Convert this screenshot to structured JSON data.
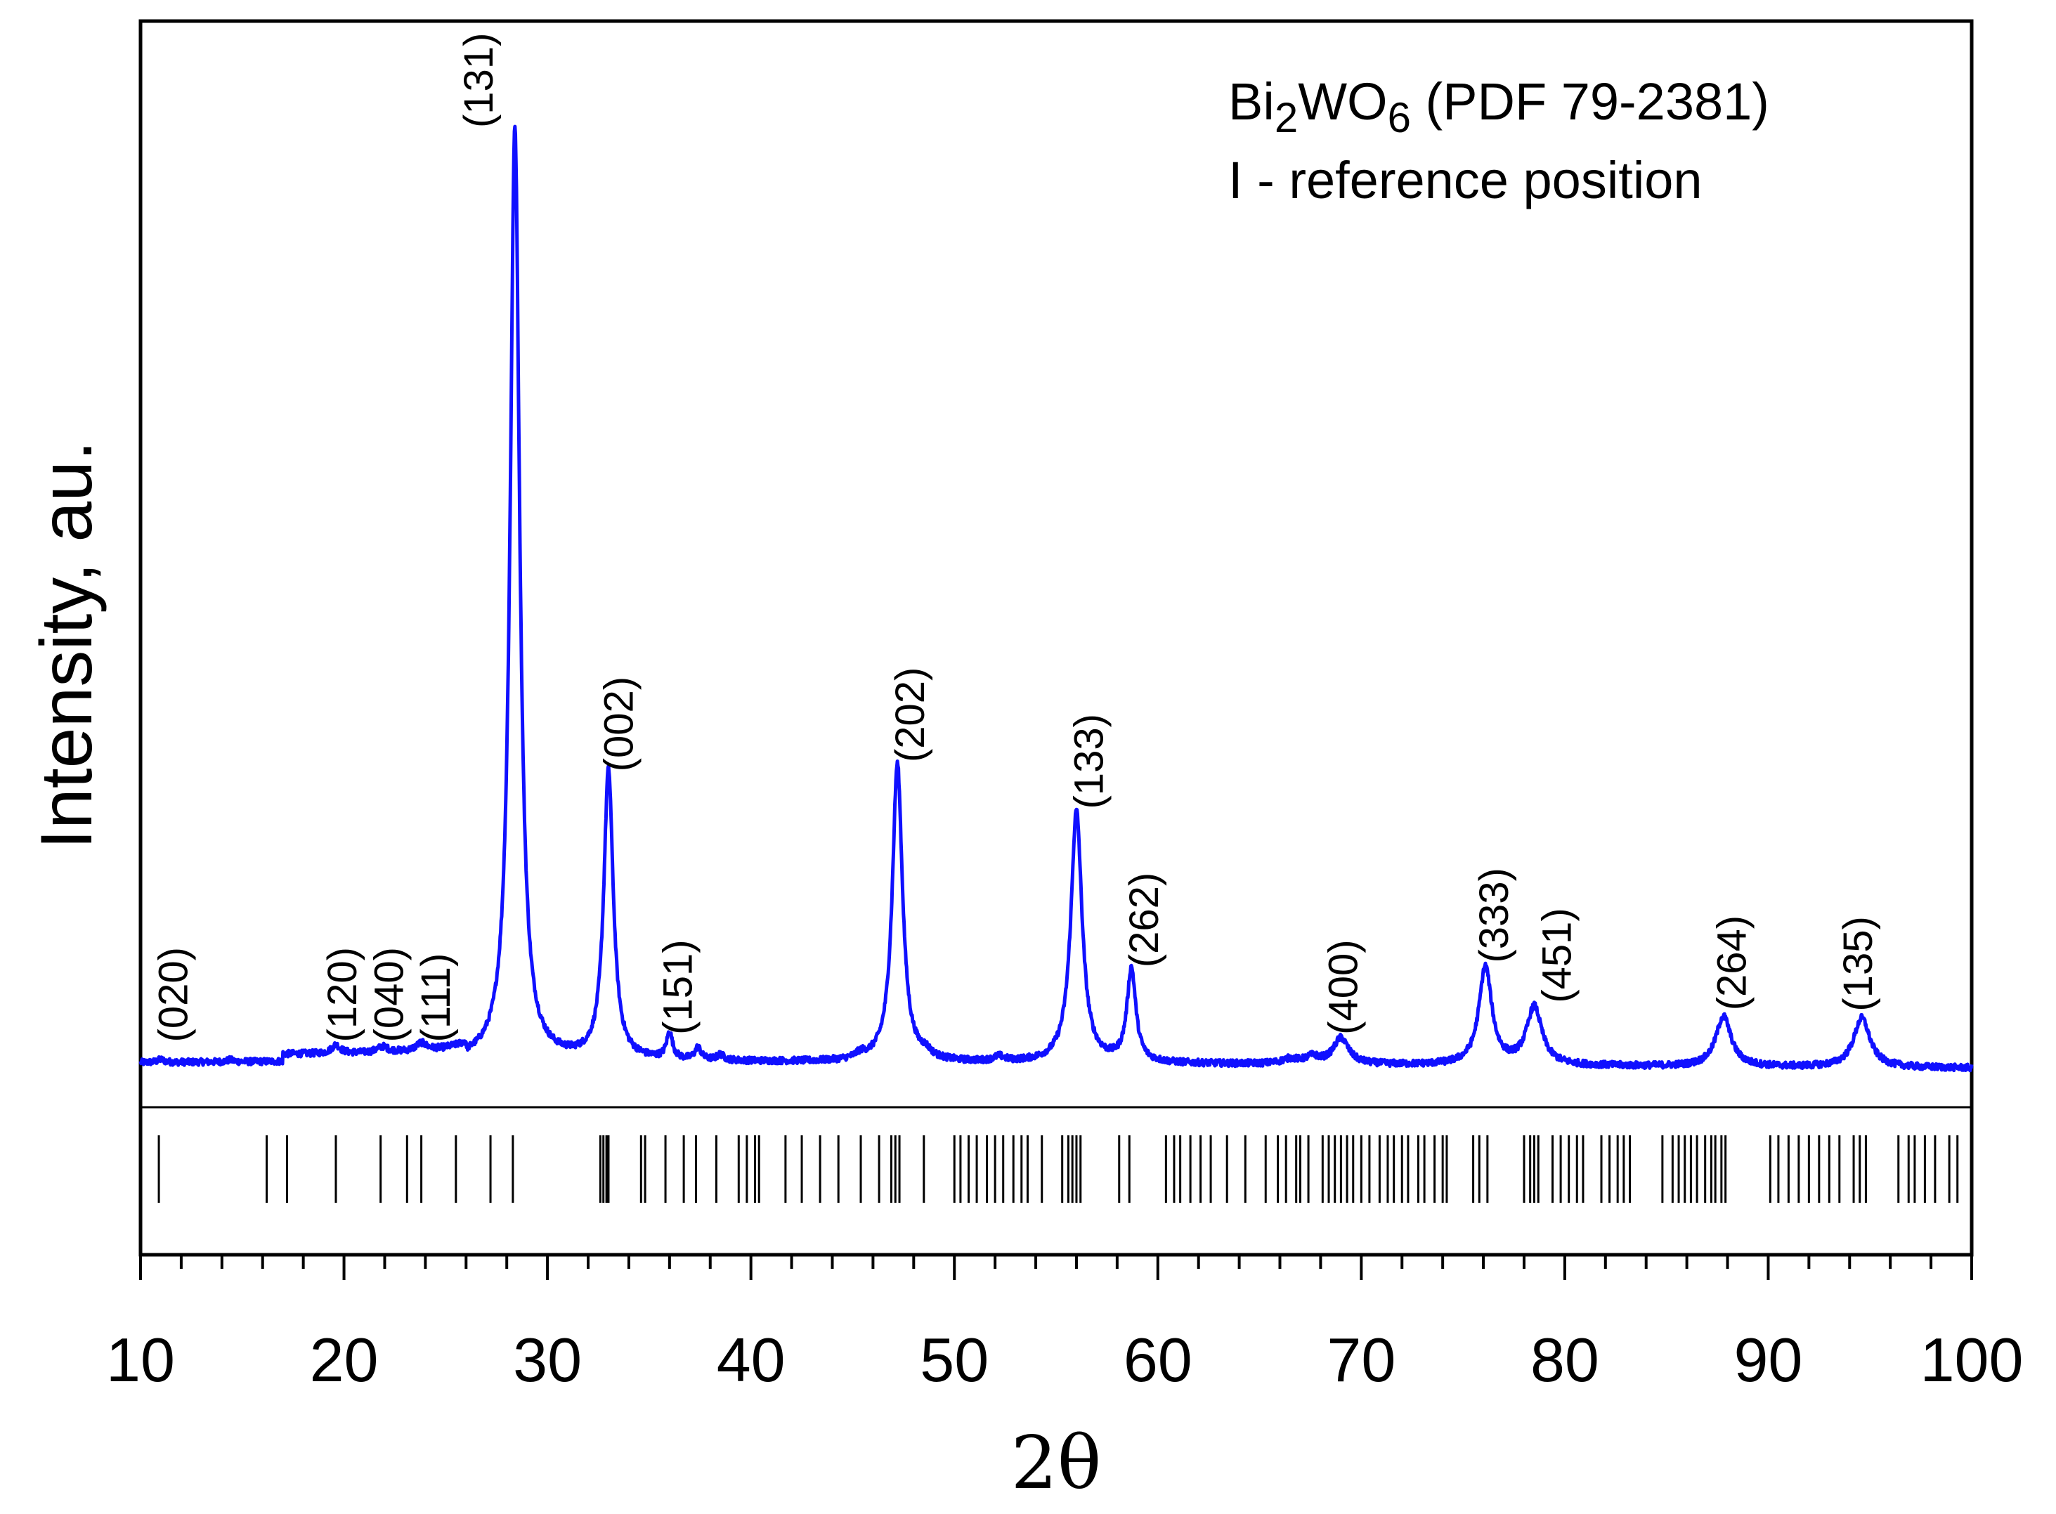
{
  "chart_data": {
    "type": "line",
    "xlabel": "2θ",
    "ylabel": "Intensity, au.",
    "xlim": [
      10,
      100
    ],
    "x_ticks": [
      10,
      20,
      30,
      40,
      50,
      60,
      70,
      80,
      90,
      100
    ],
    "legend": {
      "compound_base": "Bi",
      "compound_sub1": "2",
      "compound_mid": "WO",
      "compound_sub2": "6",
      "compound_rest": " (PDF 79-2381)",
      "note": "I - reference position"
    },
    "series": [
      {
        "color": "#1010ff",
        "baseline": 3,
        "peaks": [
          {
            "x": 11.0,
            "h": 0.3,
            "w": 0.2
          },
          {
            "x": 14.4,
            "h": 0.2,
            "w": 0.2
          },
          {
            "x": 19.6,
            "h": 0.9,
            "w": 0.25
          },
          {
            "x": 21.9,
            "h": 0.6,
            "w": 0.3
          },
          {
            "x": 23.8,
            "h": 0.8,
            "w": 0.3
          },
          {
            "x": 28.4,
            "h": 100,
            "w": 0.28
          },
          {
            "x": 33.0,
            "h": 31,
            "w": 0.28
          },
          {
            "x": 36.0,
            "h": 2.8,
            "w": 0.18
          },
          {
            "x": 37.4,
            "h": 1.3,
            "w": 0.18
          },
          {
            "x": 38.5,
            "h": 0.6,
            "w": 0.2
          },
          {
            "x": 45.4,
            "h": 0.5,
            "w": 0.3
          },
          {
            "x": 47.2,
            "h": 32,
            "w": 0.3
          },
          {
            "x": 48.6,
            "h": 0.6,
            "w": 0.3
          },
          {
            "x": 52.2,
            "h": 0.5,
            "w": 0.3
          },
          {
            "x": 56.0,
            "h": 27,
            "w": 0.33
          },
          {
            "x": 58.7,
            "h": 10,
            "w": 0.26
          },
          {
            "x": 66.5,
            "h": 0.5,
            "w": 0.5
          },
          {
            "x": 67.6,
            "h": 0.7,
            "w": 0.4
          },
          {
            "x": 69.0,
            "h": 2.8,
            "w": 0.45
          },
          {
            "x": 76.1,
            "h": 10.5,
            "w": 0.38
          },
          {
            "x": 78.5,
            "h": 6.2,
            "w": 0.45
          },
          {
            "x": 87.8,
            "h": 5.4,
            "w": 0.45
          },
          {
            "x": 94.6,
            "h": 5.3,
            "w": 0.48
          }
        ]
      }
    ],
    "peak_labels": [
      {
        "x": 12.3,
        "text": "(020)"
      },
      {
        "x": 20.6,
        "text": "(120)"
      },
      {
        "x": 22.9,
        "text": "(040)"
      },
      {
        "x": 25.2,
        "text": "(111)"
      },
      {
        "x": 27.3,
        "text": "(131)"
      },
      {
        "x": 34.2,
        "text": "(002)"
      },
      {
        "x": 37.1,
        "text": "(151)"
      },
      {
        "x": 48.5,
        "text": "(202)"
      },
      {
        "x": 57.3,
        "text": "(133)"
      },
      {
        "x": 60.0,
        "text": "(262)"
      },
      {
        "x": 69.8,
        "text": "(400)"
      },
      {
        "x": 77.2,
        "text": "(333)"
      },
      {
        "x": 80.3,
        "text": "(451)"
      },
      {
        "x": 88.9,
        "text": "(264)"
      },
      {
        "x": 95.1,
        "text": "(135)"
      }
    ],
    "reference_positions": [
      10.9,
      16.2,
      17.2,
      19.6,
      21.8,
      23.1,
      23.8,
      25.5,
      27.2,
      28.3,
      32.6,
      32.75,
      32.9,
      33.0,
      34.6,
      34.8,
      35.8,
      36.7,
      37.3,
      38.3,
      39.4,
      39.8,
      40.2,
      40.4,
      41.7,
      42.5,
      43.4,
      44.3,
      45.4,
      46.3,
      46.9,
      47.1,
      47.3,
      48.5,
      50.0,
      50.3,
      50.7,
      51.1,
      51.6,
      52.0,
      52.4,
      52.9,
      53.3,
      53.6,
      54.3,
      55.3,
      55.6,
      55.8,
      56.0,
      56.2,
      58.1,
      58.6,
      60.4,
      60.8,
      61.1,
      61.6,
      62.1,
      62.6,
      63.4,
      64.3,
      65.3,
      65.9,
      66.3,
      66.8,
      67.0,
      67.4,
      68.1,
      68.4,
      68.7,
      69.0,
      69.3,
      69.6,
      70.0,
      70.4,
      70.9,
      71.3,
      71.6,
      72.0,
      72.3,
      72.8,
      73.1,
      73.6,
      74.0,
      74.2,
      75.5,
      75.8,
      76.2,
      78.0,
      78.3,
      78.5,
      78.7,
      79.4,
      79.8,
      80.2,
      80.6,
      80.9,
      81.8,
      82.2,
      82.6,
      82.9,
      83.2,
      84.8,
      85.3,
      85.6,
      85.9,
      86.2,
      86.5,
      86.9,
      87.2,
      87.4,
      87.7,
      87.9,
      90.1,
      90.5,
      91.0,
      91.5,
      92.0,
      92.5,
      93.0,
      93.5,
      94.2,
      94.5,
      94.8,
      96.4,
      96.9,
      97.2,
      97.7,
      98.2,
      98.9,
      99.3
    ]
  }
}
